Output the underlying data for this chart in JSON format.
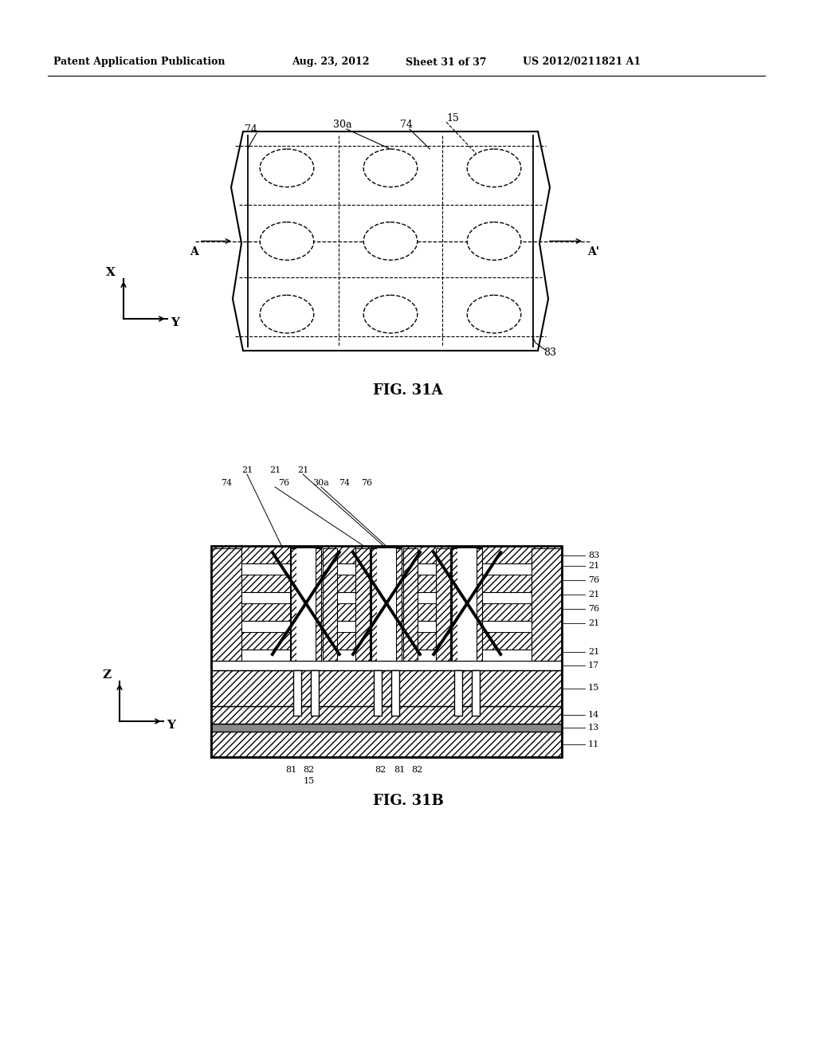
{
  "bg_color": "#ffffff",
  "header_text": "Patent Application Publication",
  "header_date": "Aug. 23, 2012",
  "header_sheet": "Sheet 31 of 37",
  "header_patent": "US 2012/0211821 A1",
  "fig31a_label": "FIG. 31A",
  "fig31b_label": "FIG. 31B"
}
